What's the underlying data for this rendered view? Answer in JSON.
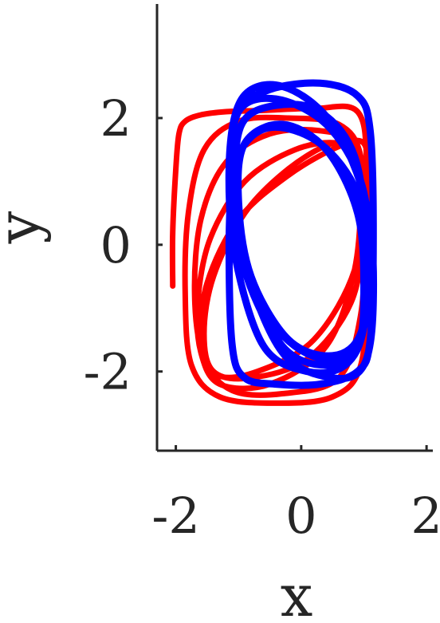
{
  "chart_data": {
    "type": "line",
    "title": "",
    "xlabel": "x",
    "ylabel": "y",
    "xlim": [
      -2.3,
      2.1
    ],
    "ylim": [
      -3.25,
      3.8
    ],
    "xticks": [
      -2,
      0,
      2
    ],
    "yticks": [
      -2,
      0,
      2
    ],
    "xtick_labels": [
      "-2",
      "0",
      "2"
    ],
    "ytick_labels": [
      "-2",
      "0",
      "2"
    ],
    "grid": false,
    "legend": "none",
    "series": [
      {
        "color": "#ff0000",
        "x": [
          -2.05,
          -2.05,
          -2.0,
          -1.95,
          -1.85,
          -1.6,
          -1.2,
          -0.6,
          0.2,
          0.9,
          1.05,
          1.05,
          0.95,
          0.5,
          -0.4,
          -1.3,
          -1.75,
          -1.85,
          -1.8,
          -1.55,
          -1.0,
          -0.2,
          0.6,
          0.95,
          1.0,
          0.95,
          0.6,
          -0.3,
          -1.1,
          -1.55,
          -1.7,
          -1.6,
          -1.2,
          -0.5,
          0.3,
          0.85,
          0.95,
          0.85,
          0.4,
          -0.5,
          -1.3,
          -1.6,
          -1.65,
          -1.45,
          -0.9,
          -0.1,
          0.6,
          0.95,
          1.0,
          0.8,
          0.1,
          -0.8,
          -1.4,
          -1.55,
          -1.4,
          -0.9,
          -0.2,
          0.5,
          0.9,
          0.95,
          0.85,
          0.2,
          -0.7,
          -1.35,
          -1.6,
          -1.5,
          -1.0,
          -0.2,
          0.6,
          1.0,
          1.05,
          0.95
        ],
        "y": [
          -0.65,
          0.2,
          1.2,
          1.75,
          1.95,
          2.05,
          2.1,
          2.12,
          2.15,
          2.1,
          1.2,
          -0.5,
          -1.9,
          -2.4,
          -2.5,
          -2.4,
          -1.9,
          -0.8,
          0.5,
          1.5,
          1.95,
          2.0,
          1.9,
          1.4,
          0.2,
          -1.1,
          -2.1,
          -2.35,
          -2.3,
          -1.8,
          -0.8,
          0.4,
          1.3,
          1.75,
          1.8,
          1.6,
          0.9,
          -0.4,
          -1.6,
          -2.2,
          -2.2,
          -1.7,
          -0.9,
          0.1,
          1.0,
          1.5,
          1.6,
          1.3,
          0.3,
          -0.9,
          -1.8,
          -2.1,
          -2.0,
          -1.4,
          -0.5,
          0.5,
          1.2,
          1.6,
          1.5,
          0.8,
          -0.4,
          -1.5,
          -2.0,
          -2.05,
          -1.5,
          -0.6,
          0.4,
          1.1,
          1.55,
          1.6,
          1.0,
          -0.2
        ]
      },
      {
        "color": "#0000ff",
        "x": [
          -1.1,
          -1.15,
          -1.1,
          -0.9,
          -0.4,
          0.3,
          0.9,
          1.1,
          1.15,
          1.1,
          0.9,
          0.3,
          -0.5,
          -1.0,
          -1.15,
          -1.05,
          -0.6,
          0.1,
          0.7,
          1.0,
          1.05,
          0.85,
          0.3,
          -0.4,
          -0.95,
          -1.05,
          -0.9,
          -0.3,
          0.4,
          0.9,
          1.0,
          0.9,
          0.4,
          -0.3,
          -0.9,
          -1.0,
          -0.8,
          -0.2,
          0.5,
          0.95,
          1.05,
          0.9,
          0.3,
          -0.5,
          -1.0,
          -1.05,
          -0.75,
          -0.1,
          0.6,
          1.0,
          1.1,
          0.95,
          0.4,
          -0.4,
          -1.0,
          -1.1,
          -0.9,
          -0.3,
          0.5,
          1.0,
          1.15,
          1.05,
          0.5,
          -0.3,
          -0.95,
          -1.15,
          -1.0
        ],
        "y": [
          1.4,
          0.0,
          -1.6,
          -2.1,
          -2.2,
          -2.2,
          -2.0,
          -1.5,
          0.2,
          1.8,
          2.35,
          2.55,
          2.45,
          2.1,
          1.2,
          -0.2,
          -1.6,
          -2.0,
          -1.9,
          -1.3,
          0.0,
          1.4,
          2.1,
          2.2,
          1.9,
          0.9,
          -0.4,
          -1.6,
          -1.9,
          -1.6,
          -0.7,
          0.5,
          1.5,
          1.9,
          1.6,
          0.7,
          -0.5,
          -1.5,
          -1.75,
          -1.4,
          -0.4,
          0.8,
          1.6,
          1.85,
          1.4,
          0.4,
          -0.8,
          -1.6,
          -1.8,
          -1.3,
          -0.2,
          1.0,
          1.9,
          2.3,
          2.1,
          1.1,
          -0.3,
          -1.7,
          -2.1,
          -1.9,
          -0.9,
          0.6,
          1.9,
          2.5,
          2.3,
          1.2,
          -0.2
        ]
      }
    ]
  }
}
